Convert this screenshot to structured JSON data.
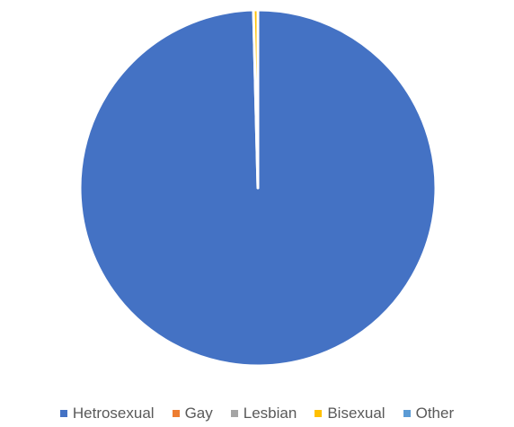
{
  "chart_data": {
    "type": "pie",
    "title": "",
    "categories": [
      "Hetrosexual",
      "Gay",
      "Lesbian",
      "Bisexual",
      "Other"
    ],
    "values": [
      99.6,
      0,
      0,
      0.4,
      0
    ],
    "colors": [
      "#4472C4",
      "#ED7D31",
      "#A5A5A5",
      "#FFC000",
      "#5B9BD5"
    ],
    "legend_position": "bottom",
    "slice_border_color": "#FFFFFF"
  }
}
